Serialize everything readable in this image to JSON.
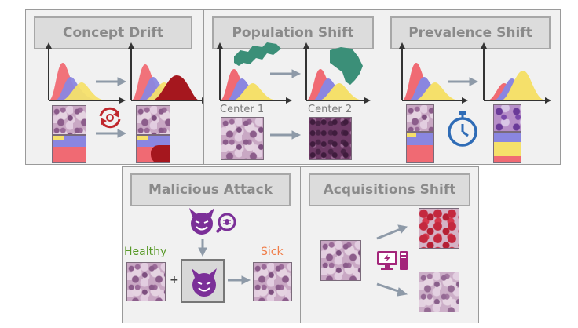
{
  "panels": {
    "concept_drift": {
      "title": "Concept Drift"
    },
    "population_shift": {
      "title": "Population Shift",
      "center1_label": "Center 1",
      "center2_label": "Center 2"
    },
    "prevalence_shift": {
      "title": "Prevalence Shift"
    },
    "malicious_attack": {
      "title": "Malicious Attack",
      "healthy_label": "Healthy",
      "sick_label": "Sick",
      "plus": "+"
    },
    "acquisitions_shift": {
      "title": "Acquisitions Shift"
    }
  },
  "colors": {
    "panel_bg": "#f1f1f1",
    "title_text": "#8a8a8a",
    "curve_red": "#f06a73",
    "curve_blue": "#8a86e0",
    "curve_yellow": "#f5e06a",
    "curve_darkred": "#a5171e",
    "arrow": "#8e9aa8",
    "continent": "#3b8f78",
    "stopwatch": "#2f6cb6",
    "devil": "#7b2f98",
    "healthy": "#5a9a2a",
    "sick": "#f07e4a"
  },
  "icons": [
    "cycle-icon",
    "europe-map-icon",
    "africa-map-icon",
    "stopwatch-icon",
    "devil-icon",
    "bug-search-icon",
    "computer-icon"
  ]
}
